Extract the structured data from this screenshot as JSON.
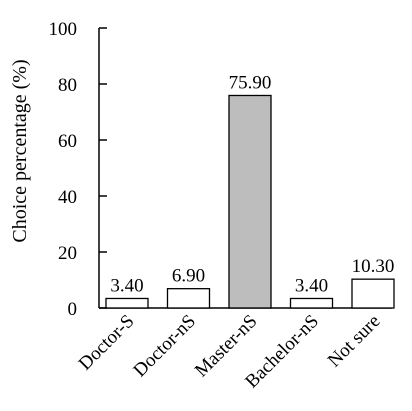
{
  "chart_data": {
    "type": "bar",
    "title": "",
    "xlabel": "",
    "ylabel": "Choice percentage (%)",
    "ylim": [
      0,
      100
    ],
    "yticks": [
      0,
      20,
      40,
      60,
      80,
      100
    ],
    "grid": false,
    "categories": [
      "Doctor-S",
      "Doctor-nS",
      "Master-nS",
      "Bachelor-nS",
      "Not sure"
    ],
    "values": [
      3.4,
      6.9,
      75.9,
      3.4,
      10.3
    ],
    "data_labels": [
      "3.40",
      "6.90",
      "75.90",
      "3.40",
      "10.30"
    ],
    "highlight_index": 2,
    "colors": {
      "bar_fill": "#ffffff",
      "highlight_fill": "#bdbdbd",
      "stroke": "#000000"
    }
  }
}
